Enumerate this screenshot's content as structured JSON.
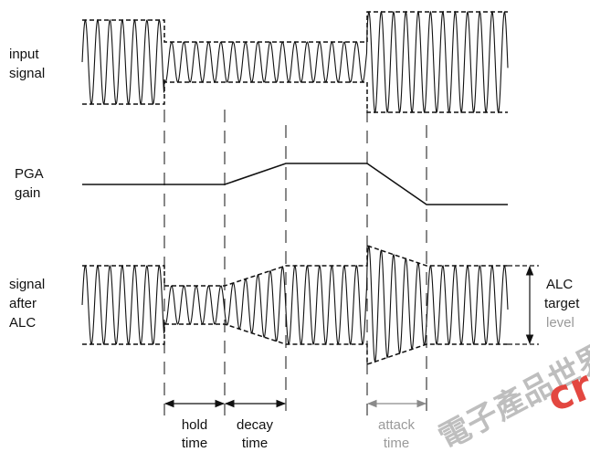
{
  "labels": {
    "input_signal_line1": "input",
    "input_signal_line2": "signal",
    "pga_gain_line1": "PGA",
    "pga_gain_line2": "gain",
    "signal_after_alc_line1": "signal",
    "signal_after_alc_line2": "after",
    "signal_after_alc_line3": "ALC",
    "alc_target_line1": "ALC",
    "alc_target_line2": "target",
    "alc_target_line3": "level",
    "hold_time_line1": "hold",
    "hold_time_line2": "time",
    "decay_time_line1": "decay",
    "decay_time_line2": "time",
    "attack_time_line1": "attack",
    "attack_time_line2": "time"
  },
  "watermark": {
    "latin": "cr",
    "cjk": "電子產品世界"
  },
  "colors": {
    "line": "#111111",
    "dim_text": "#9a9a9a",
    "arrow_dim": "#8a8a8a",
    "watermark_red": "#e0342c",
    "watermark_gray": "#b8b8b8"
  }
}
